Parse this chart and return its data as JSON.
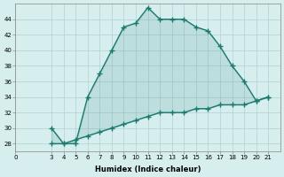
{
  "xlabel": "Humidex (Indice chaleur)",
  "ylabel": "",
  "background_color": "#d6eeee",
  "line_color": "#1a7a6e",
  "x_upper": [
    3,
    4,
    5,
    6,
    7,
    8,
    9,
    10,
    11,
    12,
    13,
    14,
    15,
    16,
    17,
    18,
    19,
    20,
    21
  ],
  "y_upper": [
    30,
    28,
    28,
    34,
    37,
    40,
    43,
    43.5,
    45.5,
    44,
    44,
    44,
    43,
    42.5,
    40.5,
    38,
    36,
    33.5,
    34
  ],
  "x_lower": [
    3,
    4,
    5,
    6,
    7,
    8,
    9,
    10,
    11,
    12,
    13,
    14,
    15,
    16,
    17,
    18,
    19,
    20,
    21
  ],
  "y_lower": [
    28,
    28,
    28.5,
    29,
    29.5,
    30,
    30.5,
    31,
    31.5,
    32,
    32,
    32,
    32.5,
    32.5,
    33,
    33,
    33,
    33.5,
    34
  ],
  "xlim": [
    0,
    22
  ],
  "ylim": [
    27,
    46
  ],
  "xticks": [
    0,
    3,
    4,
    5,
    6,
    7,
    8,
    9,
    10,
    11,
    12,
    13,
    14,
    15,
    16,
    17,
    18,
    19,
    20,
    21
  ],
  "yticks": [
    28,
    30,
    32,
    34,
    36,
    38,
    40,
    42,
    44
  ],
  "grid_color": "#b0d0d0",
  "marker": "+"
}
